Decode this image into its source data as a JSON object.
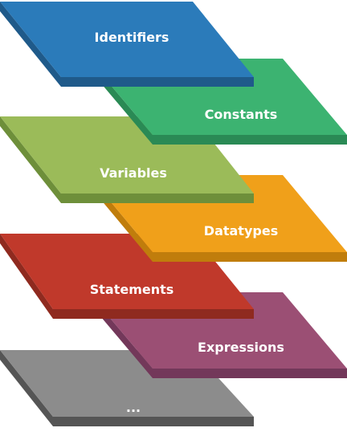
{
  "diagram": {
    "layers": [
      {
        "label": "Identifiers",
        "color": "#2b7bba",
        "edge": "#1f5a8a"
      },
      {
        "label": "Constants",
        "color": "#3cb371",
        "edge": "#2a8a55"
      },
      {
        "label": "Variables",
        "color": "#9bbb59",
        "edge": "#6e8f3a"
      },
      {
        "label": "Datatypes",
        "color": "#f0a01a",
        "edge": "#c07d0c"
      },
      {
        "label": "Statements",
        "color": "#c0392b",
        "edge": "#8f2a1f"
      },
      {
        "label": "Expressions",
        "color": "#9b4f74",
        "edge": "#73385a"
      },
      {
        "label": "...",
        "color": "#8c8c8c",
        "edge": "#555555"
      }
    ]
  }
}
